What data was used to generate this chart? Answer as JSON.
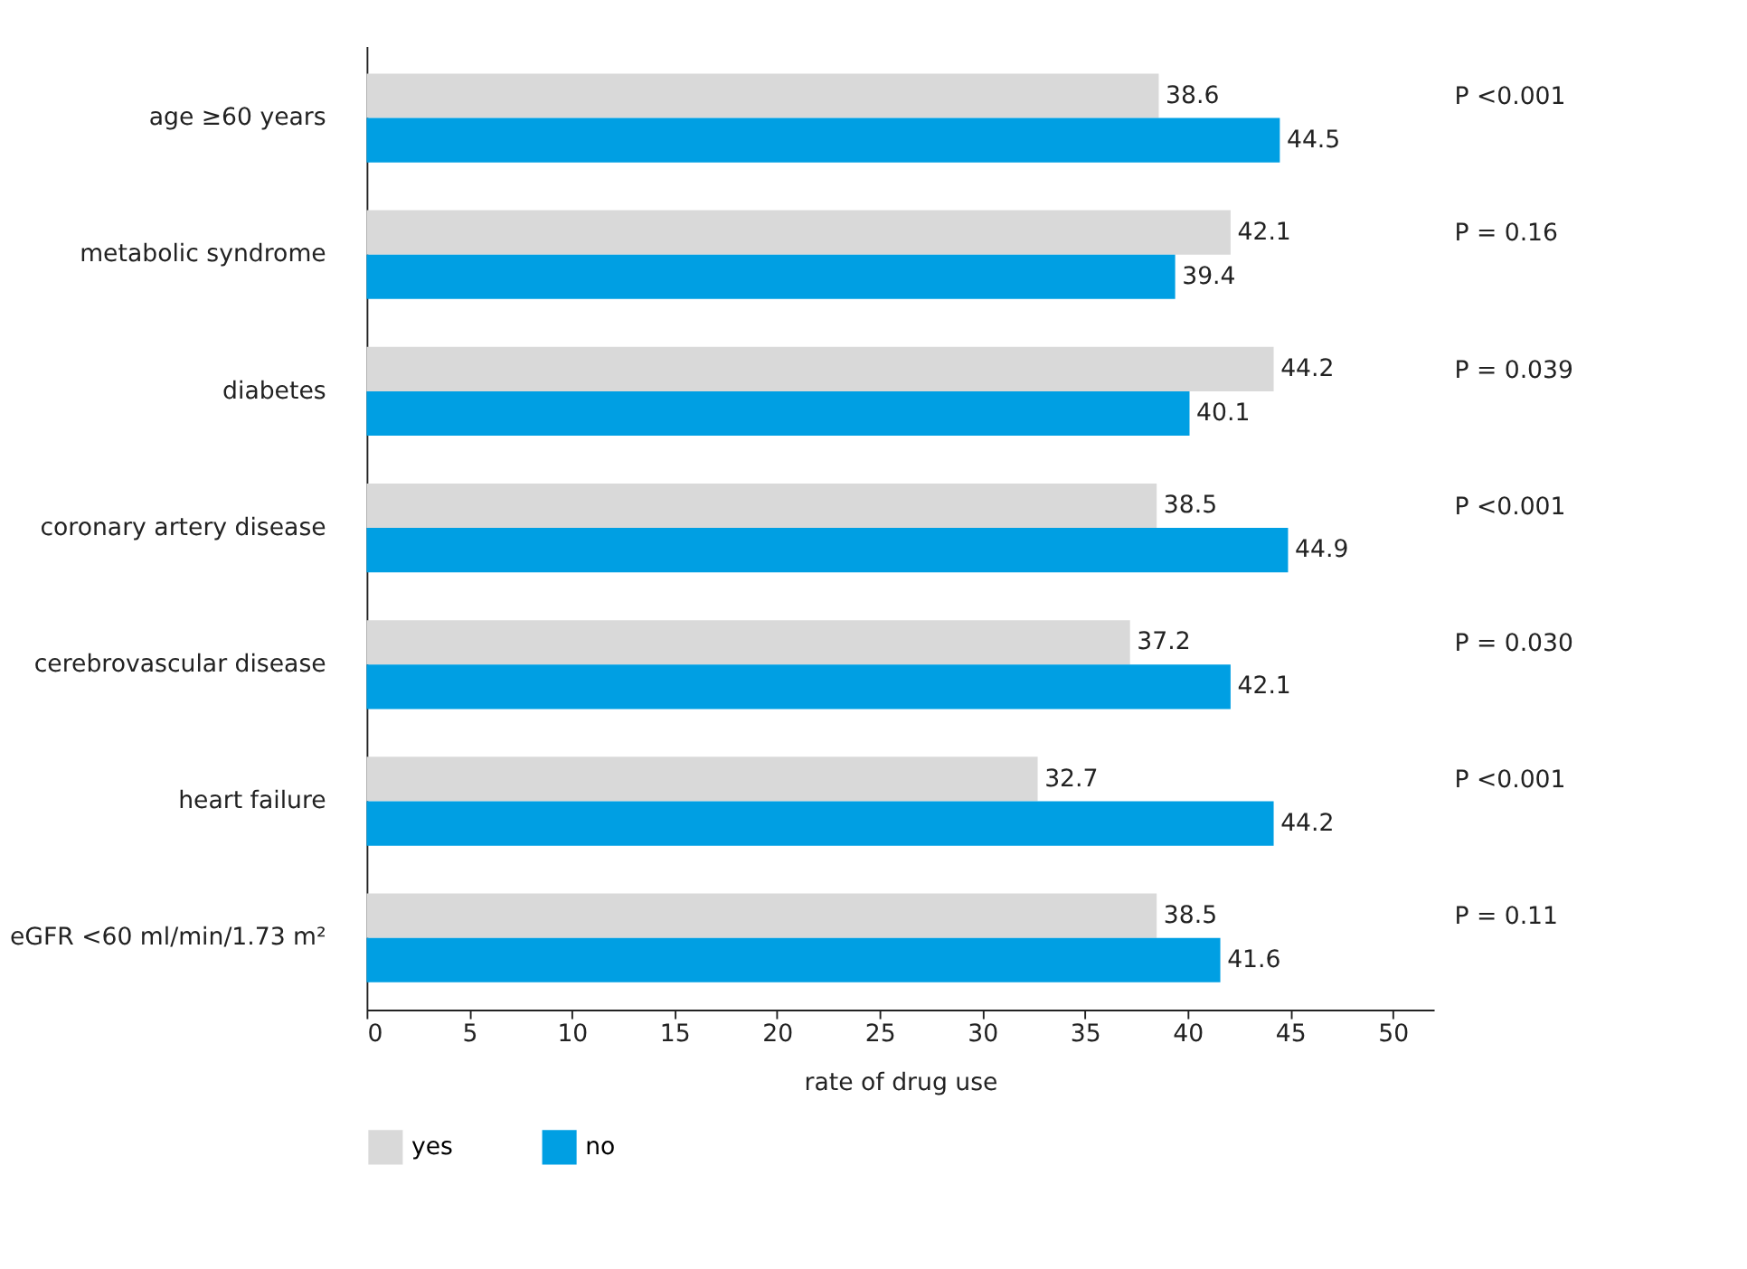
{
  "chart_data": {
    "type": "bar",
    "orientation": "horizontal",
    "xlabel": "rate of drug use",
    "categories": [
      "age ≥60 years",
      "metabolic syndrome",
      "diabetes",
      "coronary artery disease",
      "cerebrovascular disease",
      "heart failure",
      "eGFR <60 ml/min/1.73 m²"
    ],
    "series": [
      {
        "name": "yes",
        "color": "#d9d9d9",
        "values": [
          38.6,
          42.1,
          44.2,
          38.5,
          37.2,
          32.7,
          38.5
        ]
      },
      {
        "name": "no",
        "color": "#009fe3",
        "values": [
          44.5,
          39.4,
          40.1,
          44.9,
          42.1,
          44.2,
          41.6
        ]
      }
    ],
    "xlim": [
      0,
      52
    ],
    "xticks": [
      0,
      5,
      10,
      15,
      20,
      25,
      30,
      35,
      40,
      45,
      50
    ],
    "data_labels": true,
    "grid": false,
    "legend": "bottom left",
    "annotations": [
      "P <0.001",
      "P = 0.16",
      "P = 0.039",
      "P <0.001",
      "P = 0.030",
      "P <0.001",
      "P = 0.11"
    ]
  }
}
